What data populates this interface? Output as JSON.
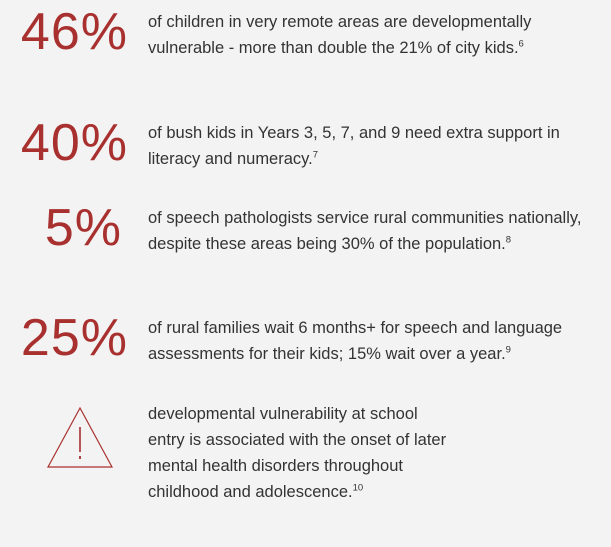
{
  "items": [
    {
      "stat": "46%",
      "text": "of children in very remote areas are developmentally vulnerable - more than double the 21% of city kids.",
      "note": "6"
    },
    {
      "stat": "40%",
      "text": "of bush kids in Years 3, 5, 7, and 9 need extra support in literacy and numeracy.",
      "note": "7"
    },
    {
      "stat": "5%",
      "text": "of speech pathologists service rural communities nationally, despite these areas being 30% of the population.",
      "note": "8"
    },
    {
      "stat": "25%",
      "text": "of rural families wait 6 months+ for speech and language assessments for their kids; 15% wait over a year.",
      "note": "9"
    },
    {
      "text": "developmental vulnerability at school entry is associated with the onset of later mental health disorders throughout childhood and adolescence.",
      "note": "10"
    }
  ]
}
